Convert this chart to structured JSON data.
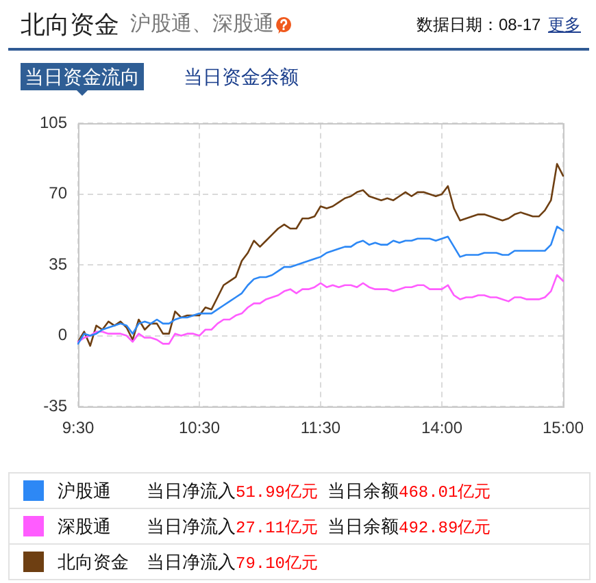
{
  "chart_data": {
    "type": "line",
    "title": "北向资金",
    "subtitle": "沪股通、深股通",
    "annotations": [
      "数据日期：08-17",
      "更多",
      "当日资金流向",
      "当日资金余额",
      "当日净流入51.99亿元",
      "当日余额468.01亿元",
      "当日净流入27.11亿元",
      "当日余额492.89亿元",
      "当日净流入79.10亿元"
    ],
    "categories": [
      "9:30",
      null,
      null,
      null,
      null,
      null,
      null,
      null,
      null,
      null,
      null,
      null,
      null,
      null,
      null,
      null,
      null,
      null,
      null,
      null,
      "10:30",
      null,
      null,
      null,
      null,
      null,
      null,
      null,
      null,
      null,
      null,
      null,
      null,
      null,
      null,
      null,
      null,
      null,
      null,
      null,
      "11:30",
      null,
      null,
      null,
      null,
      null,
      null,
      null,
      null,
      null,
      null,
      null,
      null,
      null,
      null,
      null,
      null,
      null,
      null,
      null,
      "14:00",
      null,
      null,
      null,
      null,
      null,
      null,
      null,
      null,
      null,
      null,
      null,
      null,
      null,
      null,
      null,
      null,
      null,
      null,
      null,
      "15:00"
    ],
    "ylim": [
      -35,
      105
    ],
    "yticks": [
      -35,
      0,
      35,
      70,
      105
    ],
    "grid": true,
    "legend": "bottom",
    "marker": "none",
    "line_style": "solid",
    "series": [
      {
        "name": "沪股通",
        "color": "#2d88f5",
        "values": [
          -4,
          1,
          0,
          1,
          3,
          4,
          5,
          6,
          5,
          1,
          6,
          7,
          6,
          8,
          6,
          6,
          8,
          9,
          9,
          10,
          11,
          11,
          11,
          13,
          15,
          17,
          19,
          21,
          25,
          28,
          29,
          29,
          30,
          32,
          34,
          34,
          35,
          36,
          37,
          38,
          39,
          41,
          42,
          43,
          44,
          44,
          46,
          47,
          45,
          46,
          45,
          45,
          47,
          46,
          47,
          47,
          48,
          48,
          48,
          47,
          48,
          49,
          44,
          39,
          40,
          40,
          40,
          41,
          41,
          41,
          40,
          40,
          42,
          42,
          42,
          42,
          42,
          42,
          45,
          54,
          51.99
        ]
      },
      {
        "name": "深股通",
        "color": "#ff5cff",
        "values": [
          -3,
          -1,
          0,
          2,
          2,
          1,
          1,
          1,
          0,
          -3,
          1,
          -1,
          -1,
          -2,
          -4,
          -4,
          1,
          0,
          1,
          1,
          0,
          3,
          3,
          6,
          8,
          8,
          10,
          11,
          14,
          16,
          16,
          18,
          19,
          20,
          22,
          23,
          21,
          23,
          23,
          24,
          26,
          24,
          25,
          24,
          25,
          25,
          24,
          26,
          24,
          23,
          23,
          23,
          22,
          23,
          24,
          24,
          25,
          25,
          23,
          23,
          23,
          25,
          20,
          18,
          19,
          19,
          20,
          20,
          19,
          19,
          18,
          17,
          19,
          19,
          18,
          18,
          18,
          19,
          22,
          30,
          27.11
        ]
      },
      {
        "name": "北向资金",
        "color": "#6e3f12",
        "values": [
          -3,
          2,
          -5,
          5,
          3,
          7,
          5,
          7,
          4,
          -2,
          8,
          3,
          6,
          6,
          1,
          1,
          12,
          9,
          10,
          10,
          10,
          14,
          13,
          19,
          25,
          27,
          29,
          37,
          41,
          47,
          44,
          47,
          50,
          53,
          55,
          53,
          53,
          58,
          58,
          59,
          64,
          63,
          64,
          66,
          68,
          69,
          71,
          72,
          69,
          68,
          67,
          68,
          67,
          69,
          71,
          69,
          71,
          71,
          70,
          69,
          70,
          74,
          63,
          57,
          58,
          59,
          60,
          60,
          59,
          58,
          57,
          58,
          60,
          61,
          60,
          59,
          59,
          62,
          67,
          85,
          79.1
        ]
      }
    ]
  }
}
